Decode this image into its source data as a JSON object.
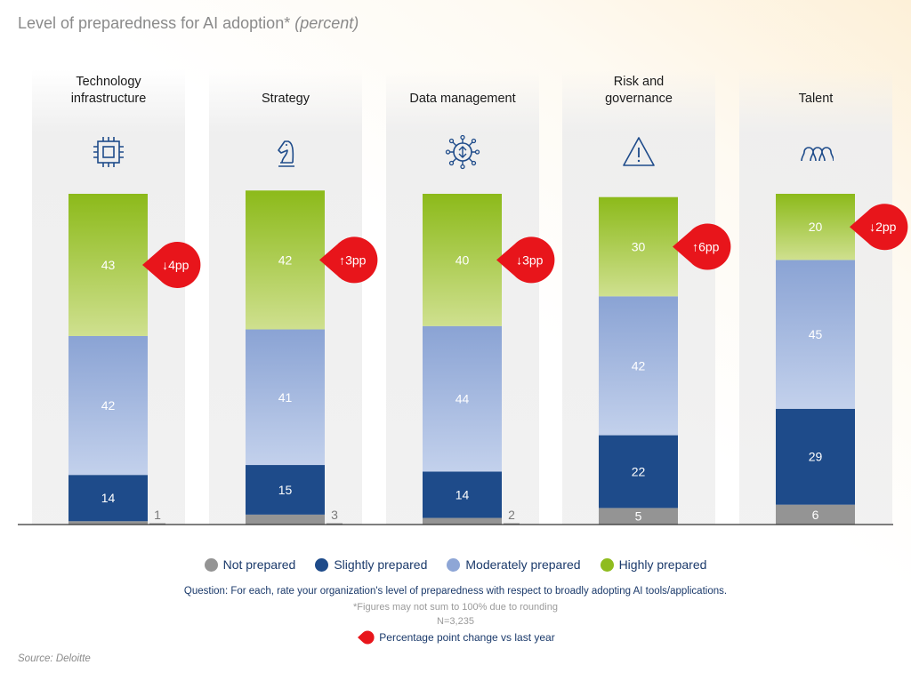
{
  "title": "Level of preparedness for AI adoption*",
  "title_unit": "(percent)",
  "chart_data": {
    "type": "bar",
    "stacked": true,
    "ylim": [
      0,
      100
    ],
    "grid": false,
    "legend_position": "bottom",
    "categories": [
      "Technology infrastructure",
      "Strategy",
      "Data management",
      "Risk and governance",
      "Talent"
    ],
    "category_label_lines": [
      [
        "Technology",
        "infrastructure"
      ],
      [
        "Strategy"
      ],
      [
        "Data management"
      ],
      [
        "Risk and",
        "governance"
      ],
      [
        "Talent"
      ]
    ],
    "icons": [
      "microchip-icon",
      "chess-knight-icon",
      "data-network-icon",
      "warning-triangle-icon",
      "people-group-icon"
    ],
    "series": [
      {
        "name": "Not prepared",
        "color": "#949494",
        "values": [
          1,
          3,
          2,
          5,
          6
        ]
      },
      {
        "name": "Slightly prepared",
        "color": "#1e4b8a",
        "values": [
          14,
          15,
          14,
          22,
          29
        ]
      },
      {
        "name": "Moderately prepared",
        "color": "#8ea6d6",
        "values": [
          42,
          41,
          44,
          42,
          45
        ]
      },
      {
        "name": "Highly prepared",
        "color": "#8fbc1e",
        "values": [
          43,
          42,
          40,
          30,
          20
        ]
      }
    ],
    "change_labels": [
      "↓4pp",
      "↑3pp",
      "↓3pp",
      "↑6pp",
      "↓2pp"
    ],
    "change_color": "#e8151b"
  },
  "legend": [
    "Not prepared",
    "Slightly prepared",
    "Moderately prepared",
    "Highly prepared"
  ],
  "question": "Question: For each, rate your organization's level of preparedness with respect to broadly adopting AI tools/applications.",
  "footnote": "*Figures may not sum to 100% due to rounding",
  "sample": "N=3,235",
  "change_legend": "Percentage point change vs last year",
  "source": "Source: Deloitte"
}
